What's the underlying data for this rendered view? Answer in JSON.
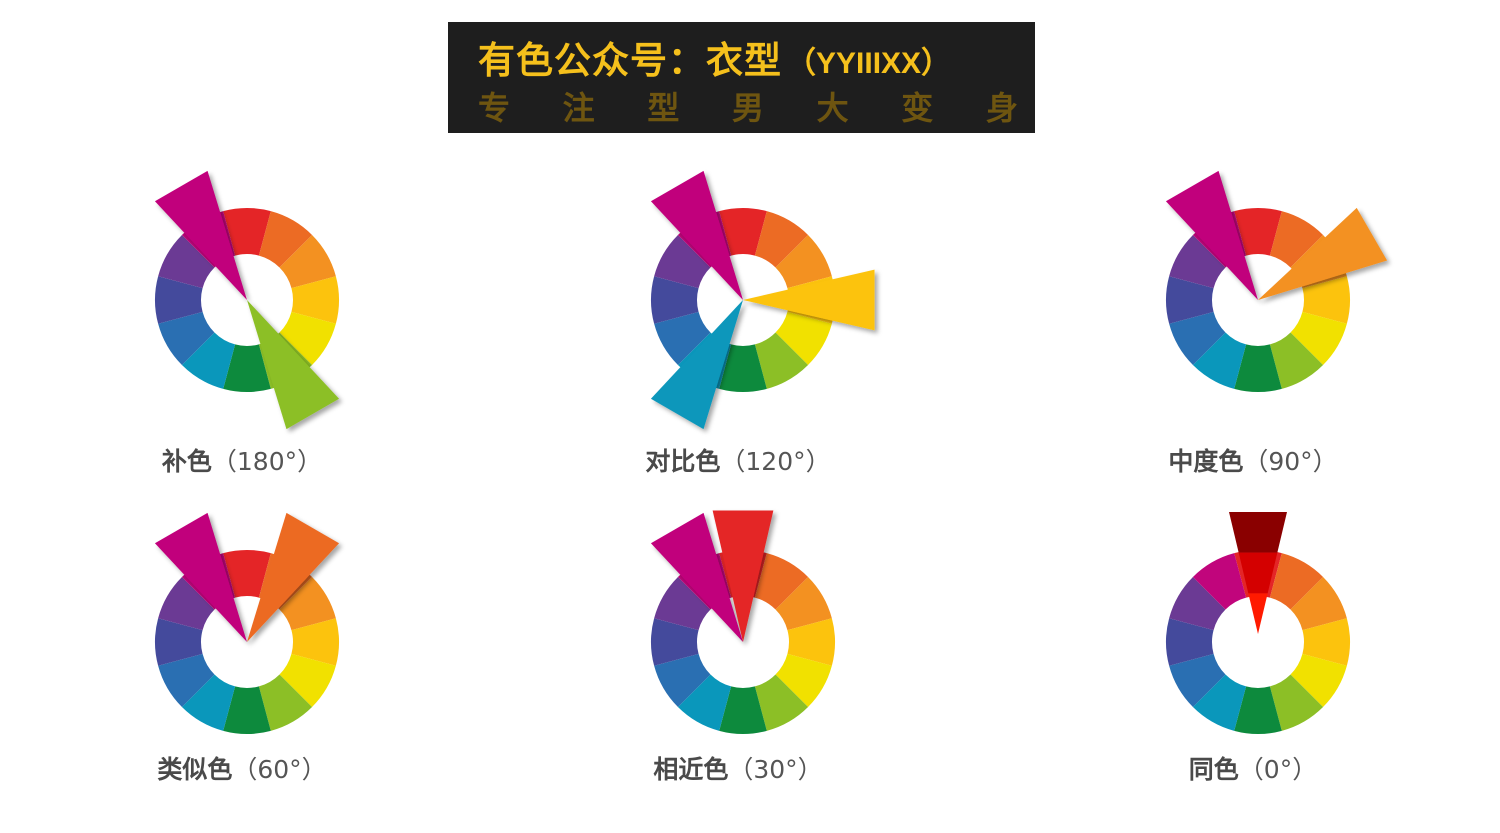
{
  "banner": {
    "title": "有色公众号：衣型",
    "handle": "（YYIIIXX）",
    "subtitle_chars": [
      "专",
      "注",
      "型",
      "男",
      "大",
      "变",
      "身"
    ]
  },
  "wheel_colors": [
    "#e42527",
    "#ec6b24",
    "#f39121",
    "#fcc30d",
    "#f1e100",
    "#8cbf26",
    "#0d8a3d",
    "#0a97bb",
    "#2a6fb2",
    "#444a9c",
    "#6b3a94",
    "#c1057c"
  ],
  "panels": [
    {
      "label": "补色",
      "degree": "（180°）",
      "pointers": [
        {
          "angle_deg": -30,
          "color": "#c1057c"
        },
        {
          "angle_deg": 150,
          "color": "#8cbf26"
        }
      ]
    },
    {
      "label": "对比色",
      "degree": "（120°）",
      "pointers": [
        {
          "angle_deg": -30,
          "color": "#c1057c"
        },
        {
          "angle_deg": 90,
          "color": "#fcc30d"
        },
        {
          "angle_deg": 210,
          "color": "#0a97bb"
        }
      ]
    },
    {
      "label": "中度色",
      "degree": "（90°）",
      "pointers": [
        {
          "angle_deg": -30,
          "color": "#c1057c"
        },
        {
          "angle_deg": 60,
          "color": "#f39121"
        }
      ]
    },
    {
      "label": "类似色",
      "degree": "（60°）",
      "pointers": [
        {
          "angle_deg": -30,
          "color": "#c1057c"
        },
        {
          "angle_deg": 30,
          "color": "#ec6b24"
        }
      ]
    },
    {
      "label": "相近色",
      "degree": "（30°）",
      "pointers": [
        {
          "angle_deg": -30,
          "color": "#c1057c"
        },
        {
          "angle_deg": 0,
          "color": "#e42527"
        }
      ]
    },
    {
      "label": "同色",
      "degree": "（0°）",
      "pointers": [],
      "mono_bands": [
        "#8a0000",
        "#d40000",
        "#ff1a00"
      ]
    }
  ]
}
